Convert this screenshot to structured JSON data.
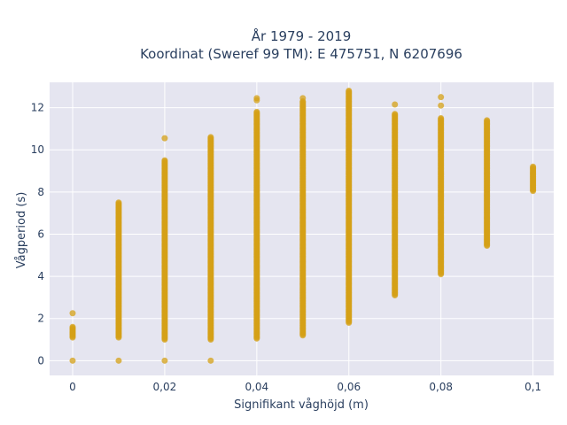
{
  "chart_data": {
    "type": "scatter",
    "title_line1": "År 1979 - 2019",
    "title_line2": "Koordinat (Sweref 99 TM): E 475751, N 6207696",
    "xlabel": "Signifikant våghöjd (m)",
    "ylabel": "Vågperiod (s)",
    "xlim": [
      -0.005,
      0.1045
    ],
    "ylim": [
      -0.7,
      13.2
    ],
    "x_ticks": [
      0,
      0.02,
      0.04,
      0.06,
      0.08,
      0.1
    ],
    "x_tick_labels": [
      "0",
      "0,02",
      "0,04",
      "0,06",
      "0,08",
      "0,1"
    ],
    "y_ticks": [
      0,
      2,
      4,
      6,
      8,
      10,
      12
    ],
    "y_tick_labels": [
      "0",
      "2",
      "4",
      "6",
      "8",
      "10",
      "12"
    ],
    "grid": true,
    "marker_color": "#d4a017",
    "plot_bgcolor": "#e5e5f0",
    "series": [
      {
        "columns": [
          {
            "x": 0.0,
            "min": 1.1,
            "max": 1.6,
            "points": [
              0,
              2.25
            ]
          },
          {
            "x": 0.01,
            "min": 1.1,
            "max": 7.5,
            "points": [
              0
            ]
          },
          {
            "x": 0.02,
            "min": 1.0,
            "max": 9.5,
            "points": [
              0,
              10.55
            ]
          },
          {
            "x": 0.03,
            "min": 1.0,
            "max": 10.6,
            "points": [
              0
            ]
          },
          {
            "x": 0.04,
            "min": 1.05,
            "max": 11.8,
            "points": [
              12.35,
              12.45
            ]
          },
          {
            "x": 0.05,
            "min": 1.2,
            "max": 12.3,
            "points": [
              12.45
            ]
          },
          {
            "x": 0.06,
            "min": 1.8,
            "max": 12.8,
            "points": []
          },
          {
            "x": 0.07,
            "min": 3.1,
            "max": 11.7,
            "points": [
              12.15
            ]
          },
          {
            "x": 0.08,
            "min": 4.1,
            "max": 11.5,
            "points": [
              12.5,
              12.1
            ]
          },
          {
            "x": 0.09,
            "min": 5.45,
            "max": 11.4,
            "points": []
          },
          {
            "x": 0.1,
            "min": 8.05,
            "max": 9.2,
            "points": []
          }
        ]
      }
    ]
  }
}
